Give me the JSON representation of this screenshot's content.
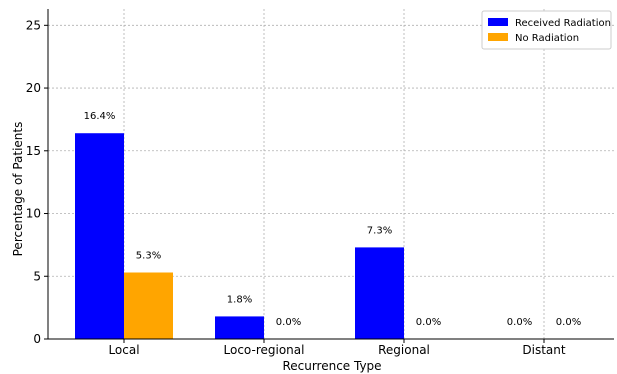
{
  "chart_data": {
    "type": "bar",
    "title": "",
    "xlabel": "Recurrence Type",
    "ylabel": "Percentage of Patients",
    "categories": [
      "Local",
      "Loco-regional",
      "Regional",
      "Distant"
    ],
    "series": [
      {
        "name": "Received Radiation",
        "color": "#0000ff",
        "values": [
          16.4,
          1.8,
          7.3,
          0.0
        ],
        "labels": [
          "16.4%",
          "1.8%",
          "7.3%",
          "0.0%"
        ]
      },
      {
        "name": "No Radiation",
        "color": "#ffa500",
        "values": [
          5.3,
          0.0,
          0.0,
          0.0
        ],
        "labels": [
          "5.3%",
          "0.0%",
          "0.0%",
          "0.0%"
        ]
      }
    ],
    "ylim": [
      0,
      26.3
    ],
    "yticks": [
      0,
      5,
      10,
      15,
      20,
      25
    ],
    "grid": true,
    "legend_position": "top-right"
  }
}
